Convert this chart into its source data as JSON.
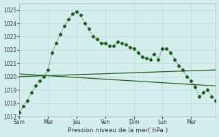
{
  "bg_color": "#d4eeee",
  "grid_color": "#b8d4d4",
  "line_color": "#1a5c1a",
  "title": "Pression niveau de la mer( hPa )",
  "ylim": [
    1017,
    1025.5
  ],
  "yticks": [
    1017,
    1018,
    1019,
    1020,
    1021,
    1022,
    1023,
    1024,
    1025
  ],
  "xlabels": [
    "Sam",
    "Mar",
    "Jeu",
    "Ven",
    "Dim",
    "Lun",
    "Mer"
  ],
  "x_tick_positions": [
    0,
    14,
    28,
    42,
    56,
    70,
    84
  ],
  "xmax": 96,
  "dotted_x": [
    0,
    2,
    4,
    6,
    8,
    10,
    12,
    14,
    16,
    18,
    20,
    22,
    24,
    26,
    28,
    30,
    32,
    34,
    36,
    38,
    40,
    42,
    44,
    46,
    48,
    50,
    52,
    54,
    56,
    58,
    60,
    62,
    64,
    66,
    68,
    70,
    72,
    74,
    76,
    78,
    80,
    82,
    84,
    86,
    88,
    90,
    92,
    94,
    96
  ],
  "dotted_y": [
    1017.3,
    1017.8,
    1018.2,
    1018.8,
    1019.3,
    1019.7,
    1020.0,
    1020.5,
    1021.8,
    1022.5,
    1023.2,
    1023.8,
    1024.3,
    1024.7,
    1024.9,
    1024.6,
    1024.0,
    1023.6,
    1023.0,
    1022.8,
    1022.5,
    1022.5,
    1022.3,
    1022.3,
    1022.6,
    1022.5,
    1022.4,
    1022.2,
    1022.1,
    1021.8,
    1021.5,
    1021.4,
    1021.3,
    1021.7,
    1021.3,
    1022.1,
    1022.1,
    1021.8,
    1021.3,
    1020.8,
    1020.5,
    1020.0,
    1019.7,
    1019.2,
    1018.5,
    1018.8,
    1019.0,
    1018.5,
    1018.2
  ],
  "line1_x": [
    0,
    96
  ],
  "line1_y": [
    1020.0,
    1020.5
  ],
  "line2_x": [
    0,
    96
  ],
  "line2_y": [
    1020.2,
    1019.3
  ]
}
